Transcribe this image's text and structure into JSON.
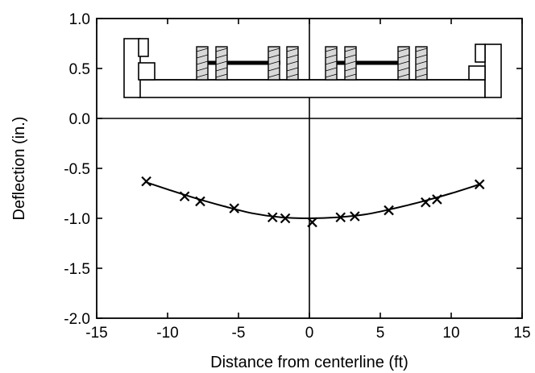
{
  "chart_data": {
    "type": "line",
    "title": "",
    "xlabel": "Distance from centerline (ft)",
    "ylabel": "Deflection (in.)",
    "xlim": [
      -15,
      15
    ],
    "ylim": [
      -2.0,
      1.0
    ],
    "xticks": [
      -15,
      -10,
      -5,
      0,
      5,
      10,
      15
    ],
    "yticks": [
      1.0,
      0.5,
      0.0,
      -0.5,
      -1.0,
      -1.5,
      -2.0
    ],
    "xtick_labels": [
      "-15",
      "-10",
      "-5",
      "0",
      "5",
      "10",
      "15"
    ],
    "ytick_labels": [
      "1.0",
      "0.5",
      "0.0",
      "-0.5",
      "-1.0",
      "-1.5",
      "-2.0"
    ],
    "grid": false,
    "reference_lines": {
      "horizontal_at_y": 0.0,
      "vertical_at_x": 0.0
    },
    "marker": "x",
    "series": [
      {
        "x": [
          -11.5,
          -8.8,
          -7.7,
          -5.3,
          -2.6,
          -1.7,
          0.2,
          2.2,
          3.2,
          5.6,
          8.2,
          9.0,
          12.0
        ],
        "y": [
          -0.63,
          -0.78,
          -0.83,
          -0.9,
          -0.99,
          -1.0,
          -1.04,
          -0.99,
          -0.98,
          -0.92,
          -0.84,
          -0.81,
          -0.66
        ]
      }
    ],
    "fit_curve": {
      "x": [
        -11.5,
        -10,
        -8,
        -6,
        -4,
        -2,
        0,
        2,
        4,
        6,
        8,
        10,
        12
      ],
      "y": [
        -0.64,
        -0.71,
        -0.8,
        -0.88,
        -0.95,
        -0.99,
        -1.0,
        -0.99,
        -0.96,
        -0.9,
        -0.83,
        -0.75,
        -0.66
      ]
    },
    "inset": {
      "description": "cross-section of bridge deck with wheel loads"
    }
  }
}
